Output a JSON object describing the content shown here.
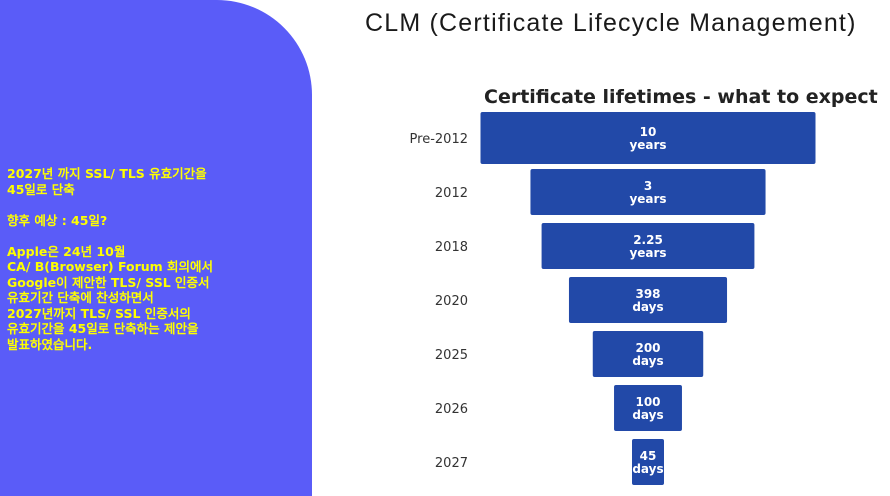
{
  "slide": {
    "title": "CLM (Certificate Lifecycle Management)"
  },
  "notes": {
    "paragraphs": [
      "2027년 까지 SSL/ TLS 유효기간을\n45일로 단축",
      "향후 예상 : 45일?",
      "Apple은 24년 10월\nCA/ B(Browser) Forum 회의에서\nGoogle이 제안한 TLS/ SSL 인증서\n유효기간 단축에 찬성하면서\n2027년까지 TLS/ SSL 인증서의\n유효기간을 45일로 단축하는 제안을\n발표하였습니다."
    ]
  },
  "colors": {
    "panel": "#5a5cf8",
    "notes_text": "#ffff00",
    "bar": "#2249a8",
    "bar_text": "#ffffff"
  },
  "chart_data": {
    "type": "bar",
    "orientation": "horizontal-centered",
    "title": "Certificate lifetimes - what to expect",
    "categories": [
      "Pre-2012",
      "2012",
      "2018",
      "2020",
      "2025",
      "2026",
      "2027"
    ],
    "values_days": [
      3650,
      1095,
      825,
      398,
      200,
      100,
      45
    ],
    "labels": [
      [
        "10",
        "years"
      ],
      [
        "3",
        "years"
      ],
      [
        "2.25",
        "years"
      ],
      [
        "398",
        "days"
      ],
      [
        "200",
        "days"
      ],
      [
        "100",
        "days"
      ],
      [
        "45",
        "days"
      ]
    ]
  }
}
